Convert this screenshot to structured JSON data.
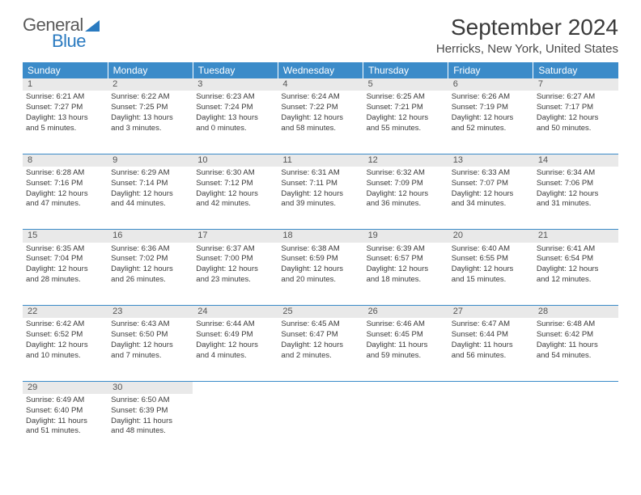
{
  "brand": {
    "part1": "General",
    "part2": "Blue"
  },
  "title": "September 2024",
  "location": "Herricks, New York, United States",
  "colors": {
    "header_bg": "#3b8bc9",
    "daynum_bg": "#e9e9e9",
    "text": "#3a3a3a"
  },
  "weekdays": [
    "Sunday",
    "Monday",
    "Tuesday",
    "Wednesday",
    "Thursday",
    "Friday",
    "Saturday"
  ],
  "weeks": [
    [
      {
        "n": "1",
        "sr": "Sunrise: 6:21 AM",
        "ss": "Sunset: 7:27 PM",
        "d1": "Daylight: 13 hours",
        "d2": "and 5 minutes."
      },
      {
        "n": "2",
        "sr": "Sunrise: 6:22 AM",
        "ss": "Sunset: 7:25 PM",
        "d1": "Daylight: 13 hours",
        "d2": "and 3 minutes."
      },
      {
        "n": "3",
        "sr": "Sunrise: 6:23 AM",
        "ss": "Sunset: 7:24 PM",
        "d1": "Daylight: 13 hours",
        "d2": "and 0 minutes."
      },
      {
        "n": "4",
        "sr": "Sunrise: 6:24 AM",
        "ss": "Sunset: 7:22 PM",
        "d1": "Daylight: 12 hours",
        "d2": "and 58 minutes."
      },
      {
        "n": "5",
        "sr": "Sunrise: 6:25 AM",
        "ss": "Sunset: 7:21 PM",
        "d1": "Daylight: 12 hours",
        "d2": "and 55 minutes."
      },
      {
        "n": "6",
        "sr": "Sunrise: 6:26 AM",
        "ss": "Sunset: 7:19 PM",
        "d1": "Daylight: 12 hours",
        "d2": "and 52 minutes."
      },
      {
        "n": "7",
        "sr": "Sunrise: 6:27 AM",
        "ss": "Sunset: 7:17 PM",
        "d1": "Daylight: 12 hours",
        "d2": "and 50 minutes."
      }
    ],
    [
      {
        "n": "8",
        "sr": "Sunrise: 6:28 AM",
        "ss": "Sunset: 7:16 PM",
        "d1": "Daylight: 12 hours",
        "d2": "and 47 minutes."
      },
      {
        "n": "9",
        "sr": "Sunrise: 6:29 AM",
        "ss": "Sunset: 7:14 PM",
        "d1": "Daylight: 12 hours",
        "d2": "and 44 minutes."
      },
      {
        "n": "10",
        "sr": "Sunrise: 6:30 AM",
        "ss": "Sunset: 7:12 PM",
        "d1": "Daylight: 12 hours",
        "d2": "and 42 minutes."
      },
      {
        "n": "11",
        "sr": "Sunrise: 6:31 AM",
        "ss": "Sunset: 7:11 PM",
        "d1": "Daylight: 12 hours",
        "d2": "and 39 minutes."
      },
      {
        "n": "12",
        "sr": "Sunrise: 6:32 AM",
        "ss": "Sunset: 7:09 PM",
        "d1": "Daylight: 12 hours",
        "d2": "and 36 minutes."
      },
      {
        "n": "13",
        "sr": "Sunrise: 6:33 AM",
        "ss": "Sunset: 7:07 PM",
        "d1": "Daylight: 12 hours",
        "d2": "and 34 minutes."
      },
      {
        "n": "14",
        "sr": "Sunrise: 6:34 AM",
        "ss": "Sunset: 7:06 PM",
        "d1": "Daylight: 12 hours",
        "d2": "and 31 minutes."
      }
    ],
    [
      {
        "n": "15",
        "sr": "Sunrise: 6:35 AM",
        "ss": "Sunset: 7:04 PM",
        "d1": "Daylight: 12 hours",
        "d2": "and 28 minutes."
      },
      {
        "n": "16",
        "sr": "Sunrise: 6:36 AM",
        "ss": "Sunset: 7:02 PM",
        "d1": "Daylight: 12 hours",
        "d2": "and 26 minutes."
      },
      {
        "n": "17",
        "sr": "Sunrise: 6:37 AM",
        "ss": "Sunset: 7:00 PM",
        "d1": "Daylight: 12 hours",
        "d2": "and 23 minutes."
      },
      {
        "n": "18",
        "sr": "Sunrise: 6:38 AM",
        "ss": "Sunset: 6:59 PM",
        "d1": "Daylight: 12 hours",
        "d2": "and 20 minutes."
      },
      {
        "n": "19",
        "sr": "Sunrise: 6:39 AM",
        "ss": "Sunset: 6:57 PM",
        "d1": "Daylight: 12 hours",
        "d2": "and 18 minutes."
      },
      {
        "n": "20",
        "sr": "Sunrise: 6:40 AM",
        "ss": "Sunset: 6:55 PM",
        "d1": "Daylight: 12 hours",
        "d2": "and 15 minutes."
      },
      {
        "n": "21",
        "sr": "Sunrise: 6:41 AM",
        "ss": "Sunset: 6:54 PM",
        "d1": "Daylight: 12 hours",
        "d2": "and 12 minutes."
      }
    ],
    [
      {
        "n": "22",
        "sr": "Sunrise: 6:42 AM",
        "ss": "Sunset: 6:52 PM",
        "d1": "Daylight: 12 hours",
        "d2": "and 10 minutes."
      },
      {
        "n": "23",
        "sr": "Sunrise: 6:43 AM",
        "ss": "Sunset: 6:50 PM",
        "d1": "Daylight: 12 hours",
        "d2": "and 7 minutes."
      },
      {
        "n": "24",
        "sr": "Sunrise: 6:44 AM",
        "ss": "Sunset: 6:49 PM",
        "d1": "Daylight: 12 hours",
        "d2": "and 4 minutes."
      },
      {
        "n": "25",
        "sr": "Sunrise: 6:45 AM",
        "ss": "Sunset: 6:47 PM",
        "d1": "Daylight: 12 hours",
        "d2": "and 2 minutes."
      },
      {
        "n": "26",
        "sr": "Sunrise: 6:46 AM",
        "ss": "Sunset: 6:45 PM",
        "d1": "Daylight: 11 hours",
        "d2": "and 59 minutes."
      },
      {
        "n": "27",
        "sr": "Sunrise: 6:47 AM",
        "ss": "Sunset: 6:44 PM",
        "d1": "Daylight: 11 hours",
        "d2": "and 56 minutes."
      },
      {
        "n": "28",
        "sr": "Sunrise: 6:48 AM",
        "ss": "Sunset: 6:42 PM",
        "d1": "Daylight: 11 hours",
        "d2": "and 54 minutes."
      }
    ],
    [
      {
        "n": "29",
        "sr": "Sunrise: 6:49 AM",
        "ss": "Sunset: 6:40 PM",
        "d1": "Daylight: 11 hours",
        "d2": "and 51 minutes."
      },
      {
        "n": "30",
        "sr": "Sunrise: 6:50 AM",
        "ss": "Sunset: 6:39 PM",
        "d1": "Daylight: 11 hours",
        "d2": "and 48 minutes."
      },
      null,
      null,
      null,
      null,
      null
    ]
  ]
}
